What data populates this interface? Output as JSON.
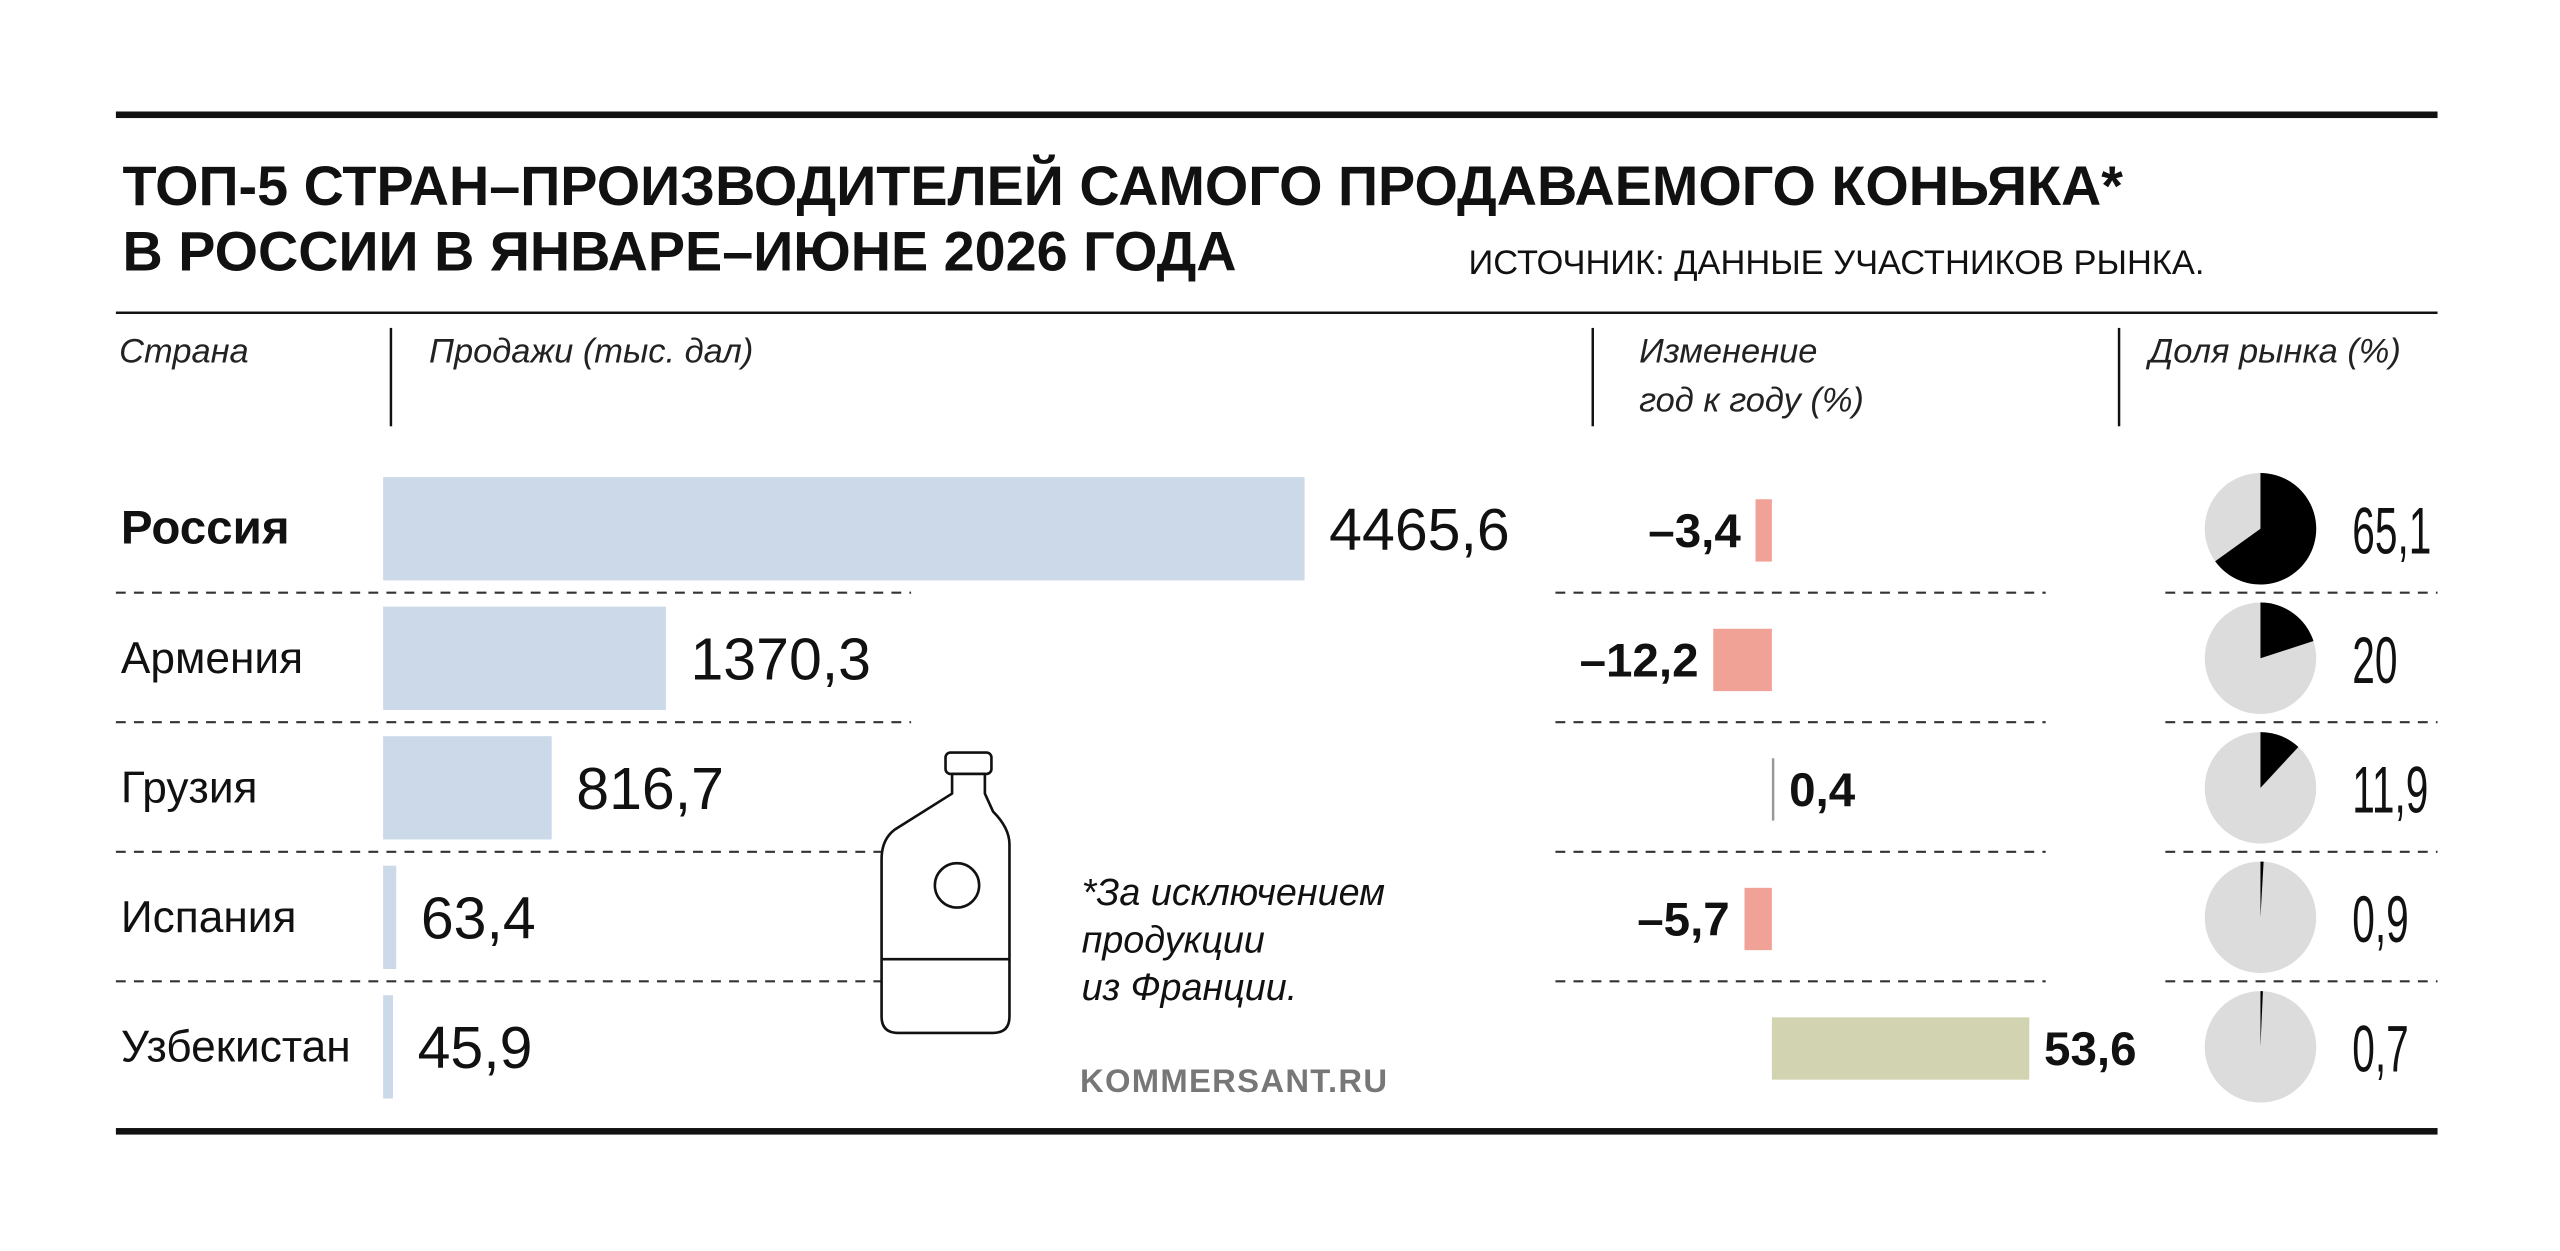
{
  "title_line1": "ТОП-5 СТРАН–ПРОИЗВОДИТЕЛЕЙ САМОГО ПРОДАВАЕМОГО КОНЬЯКА*",
  "title_line2": "В РОССИИ В ЯНВАРЕ–ИЮНЕ 2026 ГОДА",
  "source": "ИСТОЧНИК: ДАННЫЕ УЧАСТНИКОВ РЫНКА.",
  "headers": {
    "country": "Страна",
    "sales": "Продажи (тыс. дал)",
    "change_line1": "Изменение",
    "change_line2": "год к году (%)",
    "share": "Доля рынка (%)"
  },
  "footnote": [
    "*За исключением",
    "продукции",
    "из Франции."
  ],
  "credit": "KOMMERSANT.RU",
  "colors": {
    "sales_bar": "#cbd9e9",
    "negative_change": "#f0a297",
    "positive_change": "#d2d3b0",
    "pie_background": "#dcdcdc",
    "pie_share": "#000000",
    "rule": "#111111"
  },
  "chart_data": {
    "type": "table",
    "columns": [
      "Страна",
      "Продажи (тыс. дал)",
      "Изменение год к году (%)",
      "Доля рынка (%)"
    ],
    "rows": [
      {
        "country": "Россия",
        "sales": 4465.6,
        "sales_label": "4465,6",
        "change": -3.4,
        "change_label": "–3,4",
        "share": 65.1,
        "share_label": "65,1",
        "emphasis": true
      },
      {
        "country": "Армения",
        "sales": 1370.3,
        "sales_label": "1370,3",
        "change": -12.2,
        "change_label": "–12,2",
        "share": 20,
        "share_label": "20",
        "emphasis": false
      },
      {
        "country": "Грузия",
        "sales": 816.7,
        "sales_label": "816,7",
        "change": 0.4,
        "change_label": "0,4",
        "share": 11.9,
        "share_label": "11,9",
        "emphasis": false
      },
      {
        "country": "Испания",
        "sales": 63.4,
        "sales_label": "63,4",
        "change": -5.7,
        "change_label": "–5,7",
        "share": 0.9,
        "share_label": "0,9",
        "emphasis": false
      },
      {
        "country": "Узбекистан",
        "sales": 45.9,
        "sales_label": "45,9",
        "change": 53.6,
        "change_label": "53,6",
        "share": 0.7,
        "share_label": "0,7",
        "emphasis": false
      }
    ]
  }
}
